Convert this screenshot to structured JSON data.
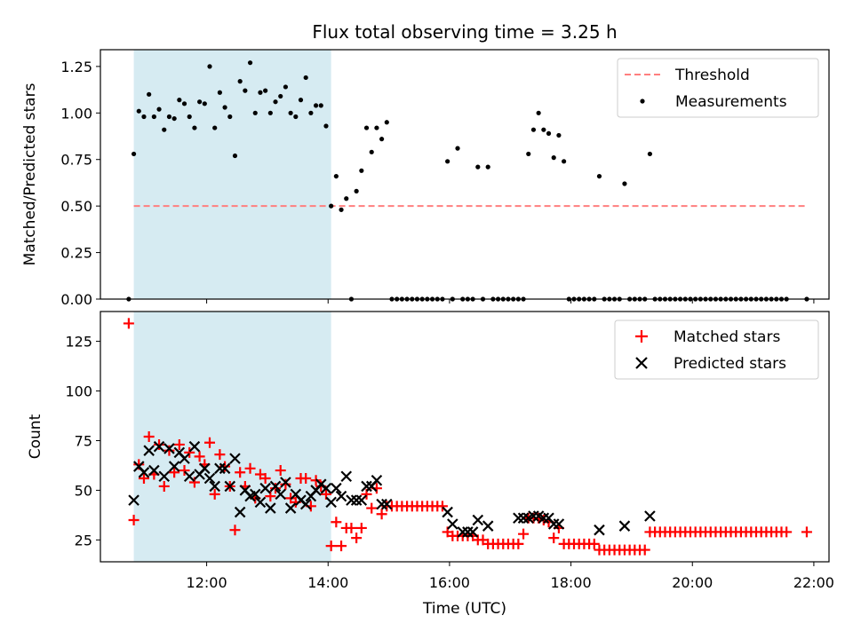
{
  "title": "Flux total observing time = 3.25 h",
  "xlabel": "Time (UTC)",
  "x_ticks": [
    "12:00",
    "14:00",
    "16:00",
    "18:00",
    "20:00",
    "22:00"
  ],
  "colors": {
    "shade": "#add8e6",
    "threshold": "#ff7f7f",
    "matched": "#ff0000",
    "predicted": "#000000",
    "measurement": "#000000"
  },
  "chart_data": [
    {
      "type": "scatter",
      "ylabel": "Matched/Predicted stars",
      "xlim": [
        "10:15",
        "22:15"
      ],
      "ylim": [
        0,
        1.34
      ],
      "y_ticks": [
        "0.00",
        "0.25",
        "0.50",
        "0.75",
        "1.00",
        "1.25"
      ],
      "shaded_interval": [
        "10:48",
        "14:03"
      ],
      "legend": {
        "position": "top-right",
        "threshold": "Threshold",
        "measurements": "Measurements"
      },
      "threshold": {
        "value": 0.5,
        "x_start": "10:48",
        "x_end": "21:53"
      },
      "measurements": [
        [
          "10:43",
          0
        ],
        [
          "10:48",
          0.78
        ],
        [
          "10:53",
          1.01
        ],
        [
          "10:58",
          0.98
        ],
        [
          "11:03",
          1.1
        ],
        [
          "11:08",
          0.98
        ],
        [
          "11:13",
          1.02
        ],
        [
          "11:18",
          0.91
        ],
        [
          "11:23",
          0.98
        ],
        [
          "11:28",
          0.97
        ],
        [
          "11:33",
          1.07
        ],
        [
          "11:38",
          1.05
        ],
        [
          "11:43",
          0.98
        ],
        [
          "11:48",
          0.92
        ],
        [
          "11:53",
          1.06
        ],
        [
          "11:58",
          1.05
        ],
        [
          "12:03",
          1.25
        ],
        [
          "12:08",
          0.92
        ],
        [
          "12:13",
          1.11
        ],
        [
          "12:18",
          1.03
        ],
        [
          "12:23",
          0.98
        ],
        [
          "12:28",
          0.77
        ],
        [
          "12:33",
          1.17
        ],
        [
          "12:38",
          1.12
        ],
        [
          "12:43",
          1.27
        ],
        [
          "12:48",
          1.0
        ],
        [
          "12:53",
          1.11
        ],
        [
          "12:58",
          1.12
        ],
        [
          "13:03",
          1.0
        ],
        [
          "13:08",
          1.06
        ],
        [
          "13:13",
          1.09
        ],
        [
          "13:18",
          1.14
        ],
        [
          "13:23",
          1.0
        ],
        [
          "13:28",
          0.98
        ],
        [
          "13:33",
          1.07
        ],
        [
          "13:38",
          1.19
        ],
        [
          "13:43",
          1.0
        ],
        [
          "13:48",
          1.04
        ],
        [
          "13:53",
          1.04
        ],
        [
          "13:58",
          0.93
        ],
        [
          "14:03",
          0.5
        ],
        [
          "14:08",
          0.66
        ],
        [
          "14:13",
          0.48
        ],
        [
          "14:18",
          0.54
        ],
        [
          "14:23",
          0
        ],
        [
          "14:28",
          0.58
        ],
        [
          "14:33",
          0.69
        ],
        [
          "14:38",
          0.92
        ],
        [
          "14:43",
          0.79
        ],
        [
          "14:48",
          0.92
        ],
        [
          "14:53",
          0.86
        ],
        [
          "14:58",
          0.95
        ],
        [
          "15:03",
          0
        ],
        [
          "15:08",
          0
        ],
        [
          "15:13",
          0
        ],
        [
          "15:18",
          0
        ],
        [
          "15:23",
          0
        ],
        [
          "15:28",
          0
        ],
        [
          "15:33",
          0
        ],
        [
          "15:38",
          0
        ],
        [
          "15:43",
          0
        ],
        [
          "15:48",
          0
        ],
        [
          "15:53",
          0
        ],
        [
          "15:58",
          0.74
        ],
        [
          "16:03",
          0
        ],
        [
          "16:08",
          0.81
        ],
        [
          "16:13",
          0
        ],
        [
          "16:18",
          0
        ],
        [
          "16:23",
          0
        ],
        [
          "16:28",
          0.71
        ],
        [
          "16:33",
          0
        ],
        [
          "16:38",
          0.71
        ],
        [
          "16:43",
          0
        ],
        [
          "16:48",
          0
        ],
        [
          "16:53",
          0
        ],
        [
          "16:58",
          0
        ],
        [
          "17:03",
          0
        ],
        [
          "17:08",
          0
        ],
        [
          "17:13",
          0
        ],
        [
          "17:18",
          0.78
        ],
        [
          "17:23",
          0.91
        ],
        [
          "17:28",
          1.0
        ],
        [
          "17:33",
          0.91
        ],
        [
          "17:38",
          0.89
        ],
        [
          "17:43",
          0.76
        ],
        [
          "17:48",
          0.88
        ],
        [
          "17:53",
          0.74
        ],
        [
          "17:58",
          0
        ],
        [
          "18:03",
          0
        ],
        [
          "18:08",
          0
        ],
        [
          "18:13",
          0
        ],
        [
          "18:18",
          0
        ],
        [
          "18:23",
          0
        ],
        [
          "18:28",
          0.66
        ],
        [
          "18:33",
          0
        ],
        [
          "18:38",
          0
        ],
        [
          "18:43",
          0
        ],
        [
          "18:48",
          0
        ],
        [
          "18:53",
          0.62
        ],
        [
          "18:58",
          0
        ],
        [
          "19:03",
          0
        ],
        [
          "19:08",
          0
        ],
        [
          "19:13",
          0
        ],
        [
          "19:18",
          0.78
        ],
        [
          "19:23",
          0
        ],
        [
          "19:28",
          0
        ],
        [
          "19:33",
          0
        ],
        [
          "19:38",
          0
        ],
        [
          "19:43",
          0
        ],
        [
          "19:48",
          0
        ],
        [
          "19:53",
          0
        ],
        [
          "19:58",
          0
        ],
        [
          "20:03",
          0
        ],
        [
          "20:08",
          0
        ],
        [
          "20:13",
          0
        ],
        [
          "20:18",
          0
        ],
        [
          "20:23",
          0
        ],
        [
          "20:28",
          0
        ],
        [
          "20:33",
          0
        ],
        [
          "20:38",
          0
        ],
        [
          "20:43",
          0
        ],
        [
          "20:48",
          0
        ],
        [
          "20:53",
          0
        ],
        [
          "20:58",
          0
        ],
        [
          "21:03",
          0
        ],
        [
          "21:08",
          0
        ],
        [
          "21:13",
          0
        ],
        [
          "21:18",
          0
        ],
        [
          "21:23",
          0
        ],
        [
          "21:28",
          0
        ],
        [
          "21:33",
          0
        ],
        [
          "21:53",
          0
        ]
      ]
    },
    {
      "type": "scatter",
      "ylabel": "Count",
      "xlim": [
        "10:15",
        "22:15"
      ],
      "ylim": [
        14,
        140
      ],
      "y_ticks": [
        "25",
        "50",
        "75",
        "100",
        "125"
      ],
      "shaded_interval": [
        "10:48",
        "14:03"
      ],
      "legend": {
        "position": "top-right",
        "matched": "Matched stars",
        "predicted": "Predicted stars"
      },
      "matched": [
        [
          "10:43",
          134
        ],
        [
          "10:48",
          35
        ],
        [
          "10:53",
          63
        ],
        [
          "10:58",
          56
        ],
        [
          "11:03",
          77
        ],
        [
          "11:08",
          58
        ],
        [
          "11:13",
          73
        ],
        [
          "11:18",
          52
        ],
        [
          "11:23",
          70
        ],
        [
          "11:28",
          59
        ],
        [
          "11:33",
          73
        ],
        [
          "11:38",
          60
        ],
        [
          "11:43",
          69
        ],
        [
          "11:48",
          54
        ],
        [
          "11:53",
          67
        ],
        [
          "11:58",
          63
        ],
        [
          "12:03",
          74
        ],
        [
          "12:08",
          48
        ],
        [
          "12:13",
          68
        ],
        [
          "12:18",
          62
        ],
        [
          "12:23",
          52
        ],
        [
          "12:28",
          30
        ],
        [
          "12:33",
          59
        ],
        [
          "12:38",
          52
        ],
        [
          "12:43",
          61
        ],
        [
          "12:48",
          46
        ],
        [
          "12:53",
          58
        ],
        [
          "12:58",
          56
        ],
        [
          "13:03",
          47
        ],
        [
          "13:08",
          51
        ],
        [
          "13:13",
          60
        ],
        [
          "13:18",
          53
        ],
        [
          "13:23",
          46
        ],
        [
          "13:28",
          44
        ],
        [
          "13:33",
          56
        ],
        [
          "13:38",
          56
        ],
        [
          "13:43",
          42
        ],
        [
          "13:48",
          55
        ],
        [
          "13:53",
          52
        ],
        [
          "13:58",
          48
        ],
        [
          "14:03",
          22
        ],
        [
          "14:08",
          34
        ],
        [
          "14:13",
          22
        ],
        [
          "14:18",
          31
        ],
        [
          "14:23",
          31
        ],
        [
          "14:28",
          26
        ],
        [
          "14:33",
          31
        ],
        [
          "14:38",
          48
        ],
        [
          "14:43",
          41
        ],
        [
          "14:48",
          51
        ],
        [
          "14:53",
          38
        ],
        [
          "14:58",
          42
        ],
        [
          "15:03",
          42
        ],
        [
          "15:08",
          42
        ],
        [
          "15:13",
          42
        ],
        [
          "15:18",
          42
        ],
        [
          "15:23",
          42
        ],
        [
          "15:28",
          42
        ],
        [
          "15:33",
          42
        ],
        [
          "15:38",
          42
        ],
        [
          "15:43",
          42
        ],
        [
          "15:48",
          42
        ],
        [
          "15:53",
          42
        ],
        [
          "15:58",
          29
        ],
        [
          "16:03",
          27
        ],
        [
          "16:08",
          27
        ],
        [
          "16:13",
          27
        ],
        [
          "16:18",
          27
        ],
        [
          "16:23",
          27
        ],
        [
          "16:28",
          25
        ],
        [
          "16:33",
          25
        ],
        [
          "16:38",
          23
        ],
        [
          "16:43",
          23
        ],
        [
          "16:48",
          23
        ],
        [
          "16:53",
          23
        ],
        [
          "16:58",
          23
        ],
        [
          "17:03",
          23
        ],
        [
          "17:08",
          23
        ],
        [
          "17:13",
          28
        ],
        [
          "17:18",
          36
        ],
        [
          "17:23",
          36
        ],
        [
          "17:28",
          36
        ],
        [
          "17:33",
          35
        ],
        [
          "17:38",
          34
        ],
        [
          "17:43",
          26
        ],
        [
          "17:48",
          31
        ],
        [
          "17:53",
          23
        ],
        [
          "17:58",
          23
        ],
        [
          "18:03",
          23
        ],
        [
          "18:08",
          23
        ],
        [
          "18:13",
          23
        ],
        [
          "18:18",
          23
        ],
        [
          "18:23",
          23
        ],
        [
          "18:28",
          20
        ],
        [
          "18:33",
          20
        ],
        [
          "18:38",
          20
        ],
        [
          "18:43",
          20
        ],
        [
          "18:48",
          20
        ],
        [
          "18:53",
          20
        ],
        [
          "18:58",
          20
        ],
        [
          "19:03",
          20
        ],
        [
          "19:08",
          20
        ],
        [
          "19:13",
          20
        ],
        [
          "19:18",
          29
        ],
        [
          "19:23",
          29
        ],
        [
          "19:28",
          29
        ],
        [
          "19:33",
          29
        ],
        [
          "19:38",
          29
        ],
        [
          "19:43",
          29
        ],
        [
          "19:48",
          29
        ],
        [
          "19:53",
          29
        ],
        [
          "19:58",
          29
        ],
        [
          "20:03",
          29
        ],
        [
          "20:08",
          29
        ],
        [
          "20:13",
          29
        ],
        [
          "20:18",
          29
        ],
        [
          "20:23",
          29
        ],
        [
          "20:28",
          29
        ],
        [
          "20:33",
          29
        ],
        [
          "20:38",
          29
        ],
        [
          "20:43",
          29
        ],
        [
          "20:48",
          29
        ],
        [
          "20:53",
          29
        ],
        [
          "20:58",
          29
        ],
        [
          "21:03",
          29
        ],
        [
          "21:08",
          29
        ],
        [
          "21:13",
          29
        ],
        [
          "21:18",
          29
        ],
        [
          "21:23",
          29
        ],
        [
          "21:28",
          29
        ],
        [
          "21:33",
          29
        ],
        [
          "21:53",
          29
        ]
      ],
      "predicted": [
        [
          "10:48",
          45
        ],
        [
          "10:53",
          62
        ],
        [
          "10:58",
          59
        ],
        [
          "11:03",
          70
        ],
        [
          "11:08",
          60
        ],
        [
          "11:13",
          72
        ],
        [
          "11:18",
          57
        ],
        [
          "11:23",
          71
        ],
        [
          "11:28",
          62
        ],
        [
          "11:33",
          69
        ],
        [
          "11:38",
          66
        ],
        [
          "11:43",
          57
        ],
        [
          "11:48",
          72
        ],
        [
          "11:53",
          58
        ],
        [
          "11:58",
          61
        ],
        [
          "12:03",
          56
        ],
        [
          "12:08",
          52
        ],
        [
          "12:13",
          61
        ],
        [
          "12:18",
          61
        ],
        [
          "12:23",
          52
        ],
        [
          "12:28",
          66
        ],
        [
          "12:33",
          39
        ],
        [
          "12:38",
          50
        ],
        [
          "12:43",
          47
        ],
        [
          "12:48",
          48
        ],
        [
          "12:53",
          44
        ],
        [
          "12:58",
          51
        ],
        [
          "13:03",
          41
        ],
        [
          "13:08",
          52
        ],
        [
          "13:13",
          48
        ],
        [
          "13:18",
          54
        ],
        [
          "13:23",
          41
        ],
        [
          "13:28",
          48
        ],
        [
          "13:33",
          45
        ],
        [
          "13:38",
          43
        ],
        [
          "13:43",
          47
        ],
        [
          "13:48",
          50
        ],
        [
          "13:53",
          53
        ],
        [
          "13:58",
          51
        ],
        [
          "14:03",
          44
        ],
        [
          "14:08",
          51
        ],
        [
          "14:13",
          47
        ],
        [
          "14:18",
          57
        ],
        [
          "14:23",
          45
        ],
        [
          "14:28",
          45
        ],
        [
          "14:33",
          45
        ],
        [
          "14:38",
          52
        ],
        [
          "14:43",
          52
        ],
        [
          "14:48",
          55
        ],
        [
          "14:53",
          43
        ],
        [
          "14:58",
          43
        ],
        [
          "15:58",
          39
        ],
        [
          "16:03",
          33
        ],
        [
          "16:13",
          29
        ],
        [
          "16:18",
          29
        ],
        [
          "16:23",
          29
        ],
        [
          "16:28",
          35
        ],
        [
          "16:38",
          32
        ],
        [
          "17:08",
          36
        ],
        [
          "17:13",
          36
        ],
        [
          "17:18",
          36
        ],
        [
          "17:23",
          37
        ],
        [
          "17:28",
          37
        ],
        [
          "17:33",
          36
        ],
        [
          "17:38",
          36
        ],
        [
          "17:43",
          33
        ],
        [
          "17:48",
          33
        ],
        [
          "18:28",
          30
        ],
        [
          "18:53",
          32
        ],
        [
          "19:18",
          37
        ]
      ]
    }
  ]
}
